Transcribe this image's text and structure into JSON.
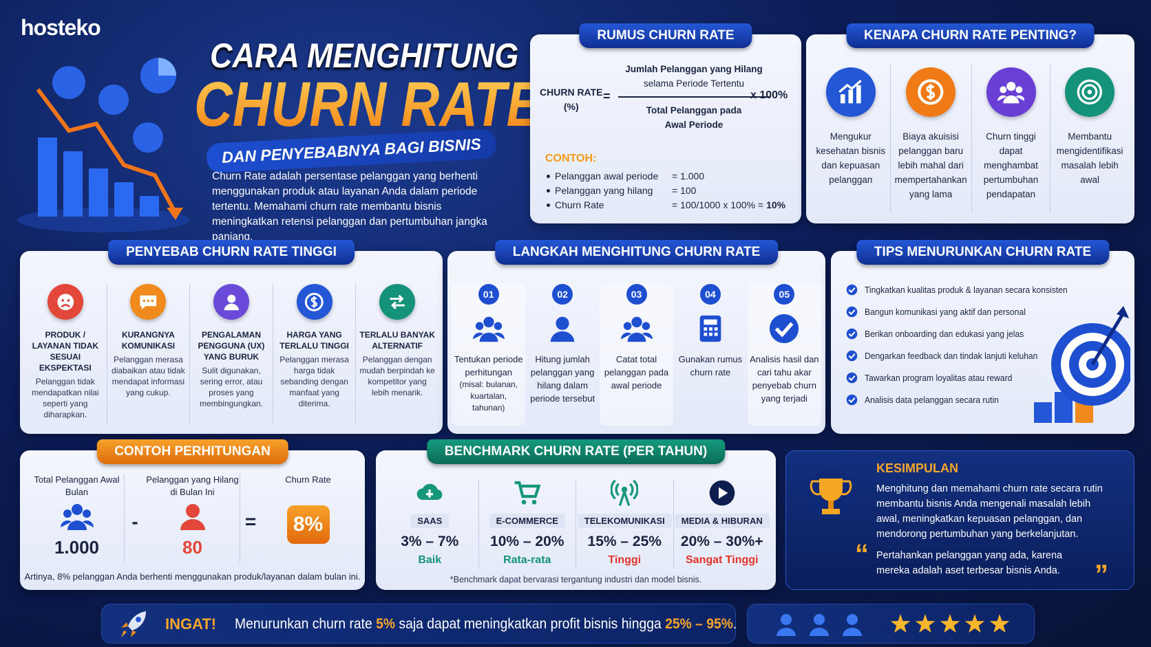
{
  "brand": "hosteko",
  "header": {
    "title_line1": "CARA MENGHITUNG",
    "title_line2": "CHURN RATE",
    "subtitle": "DAN PENYEBABNYA BAGI BISNIS",
    "intro": "Churn Rate adalah persentase pelanggan yang berhenti menggunakan produk atau layanan Anda dalam periode tertentu. Memahami churn rate membantu bisnis meningkatkan retensi pelanggan dan pertumbuhan jangka panjang."
  },
  "formula": {
    "heading": "RUMUS CHURN RATE",
    "label": "CHURN RATE",
    "unit": "(%)",
    "equals": "=",
    "numerator": [
      "Jumlah Pelanggan yang Hilang",
      "selama Periode Tertentu"
    ],
    "denominator": [
      "Total Pelanggan pada",
      "Awal Periode"
    ],
    "multiplier": "x 100%",
    "example_heading": "CONTOH:",
    "example": [
      {
        "label": "Pelanggan awal periode",
        "value": "= 1.000"
      },
      {
        "label": "Pelanggan yang hilang",
        "value": "= 100"
      },
      {
        "label": "Churn Rate",
        "value": "= 100/1000 x 100% =",
        "result": "10%"
      }
    ]
  },
  "why": {
    "heading": "KENAPA CHURN RATE PENTING?",
    "items": [
      "Mengukur kesehatan bisnis dan kepuasan pelanggan",
      "Biaya akuisisi pelanggan baru lebih mahal dari mempertahankan yang lama",
      "Churn tinggi dapat menghambat pertumbuhan pendapatan",
      "Membantu mengidentifikasi masalah lebih awal"
    ]
  },
  "causes": {
    "heading": "PENYEBAB CHURN RATE TINGGI",
    "items": [
      {
        "title": "PRODUK / LAYANAN TIDAK SESUAI EKSPEKTASI",
        "text": "Pelanggan tidak mendapatkan nilai seperti yang diharapkan."
      },
      {
        "title": "KURANGNYA KOMUNIKASI",
        "text": "Pelanggan merasa diabaikan atau tidak mendapat informasi yang cukup."
      },
      {
        "title": "PENGALAMAN PENGGUNA (UX) YANG BURUK",
        "text": "Sulit digunakan, sering error, atau proses yang membingungkan."
      },
      {
        "title": "HARGA YANG TERLALU TINGGI",
        "text": "Pelanggan merasa harga tidak sebanding dengan manfaat yang diterima."
      },
      {
        "title": "TERLALU BANYAK ALTERNATIF",
        "text": "Pelanggan dengan mudah berpindah ke kompetitor yang lebih menarik."
      }
    ]
  },
  "steps": {
    "heading": "LANGKAH MENGHITUNG CHURN RATE",
    "items": [
      {
        "number": "01",
        "text": "Tentukan periode perhitungan",
        "note": "(misal: bulanan, kuartalan, tahunan)"
      },
      {
        "number": "02",
        "text": "Hitung jumlah pelanggan yang hilang dalam periode tersebut"
      },
      {
        "number": "03",
        "text": "Catat total pelanggan pada awal periode"
      },
      {
        "number": "04",
        "text": "Gunakan rumus churn rate"
      },
      {
        "number": "05",
        "text": "Analisis hasil dan cari tahu akar penyebab churn yang terjadi"
      }
    ]
  },
  "tips": {
    "heading": "TIPS MENURUNKAN CHURN RATE",
    "items": [
      "Tingkatkan kualitas produk & layanan secara konsisten",
      "Bangun komunikasi yang aktif dan personal",
      "Berikan onboarding dan edukasi yang jelas",
      "Dengarkan feedback dan tindak lanjuti keluhan",
      "Tawarkan program loyalitas atau reward",
      "Analisis data pelanggan secara rutin"
    ]
  },
  "example_calc": {
    "heading": "CONTOH PERHITUNGAN",
    "columns": [
      {
        "label": "Total Pelanggan Awal Bulan",
        "value": "1.000"
      },
      {
        "label": "Pelanggan yang Hilang di Bulan Ini",
        "value": "80"
      },
      {
        "label": "Churn Rate",
        "value": "8%"
      }
    ],
    "minus": "-",
    "equals": "=",
    "note": "Artinya, 8% pelanggan Anda berhenti menggunakan produk/layanan dalam bulan ini."
  },
  "benchmark": {
    "heading": "BENCHMARK CHURN RATE (PER TAHUN)",
    "items": [
      {
        "name": "SAAS",
        "range": "3% – 7%",
        "rating": "Baik"
      },
      {
        "name": "E-COMMERCE",
        "range": "10% – 20%",
        "rating": "Rata-rata"
      },
      {
        "name": "TELEKOMUNIKASI",
        "range": "15% – 25%",
        "rating": "Tinggi"
      },
      {
        "name": "MEDIA & HIBURAN",
        "range": "20% – 30%+",
        "rating": "Sangat Tinggi"
      }
    ],
    "footnote": "*Benchmark dapat bervarasi tergantung industri dan model bisnis."
  },
  "conclusion": {
    "heading": "KESIMPULAN",
    "text": "Menghitung dan memahami churn rate secara rutin membantu bisnis Anda mengenali masalah lebih awal, meningkatkan kepuasan pelanggan, dan mendorong pertumbuhan yang berkelanjutan.",
    "open_quote": "“",
    "quote": "Pertahankan pelanggan yang ada, karena mereka adalah aset terbesar bisnis Anda.",
    "close_quote": "”"
  },
  "reminder": {
    "label": "INGAT!",
    "parts": [
      "Menurunkan churn rate ",
      "5%",
      " saja dapat meningkatkan profit bisnis hingga ",
      "25% – 95%",
      "."
    ]
  }
}
